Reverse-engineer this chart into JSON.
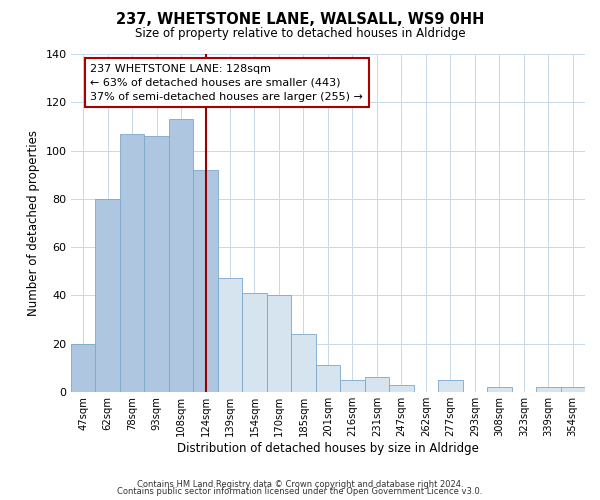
{
  "title": "237, WHETSTONE LANE, WALSALL, WS9 0HH",
  "subtitle": "Size of property relative to detached houses in Aldridge",
  "xlabel": "Distribution of detached houses by size in Aldridge",
  "ylabel": "Number of detached properties",
  "bar_labels": [
    "47sqm",
    "62sqm",
    "78sqm",
    "93sqm",
    "108sqm",
    "124sqm",
    "139sqm",
    "154sqm",
    "170sqm",
    "185sqm",
    "201sqm",
    "216sqm",
    "231sqm",
    "247sqm",
    "262sqm",
    "277sqm",
    "293sqm",
    "308sqm",
    "323sqm",
    "339sqm",
    "354sqm"
  ],
  "bar_values": [
    20,
    80,
    107,
    106,
    113,
    92,
    47,
    41,
    40,
    24,
    11,
    5,
    6,
    3,
    0,
    5,
    0,
    2,
    0,
    2,
    2
  ],
  "bar_color_left": "#aec6e0",
  "bar_color_right": "#d6e4f0",
  "highlight_index": 5,
  "vline_color": "#990000",
  "annotation_line1": "237 WHETSTONE LANE: 128sqm",
  "annotation_line2": "← 63% of detached houses are smaller (443)",
  "annotation_line3": "37% of semi-detached houses are larger (255) →",
  "annotation_box_color": "white",
  "annotation_box_edgecolor": "#aa0000",
  "ylim": [
    0,
    140
  ],
  "yticks": [
    0,
    20,
    40,
    60,
    80,
    100,
    120,
    140
  ],
  "footer1": "Contains HM Land Registry data © Crown copyright and database right 2024.",
  "footer2": "Contains public sector information licensed under the Open Government Licence v3.0.",
  "background_color": "white",
  "grid_color": "#c8d8e8"
}
